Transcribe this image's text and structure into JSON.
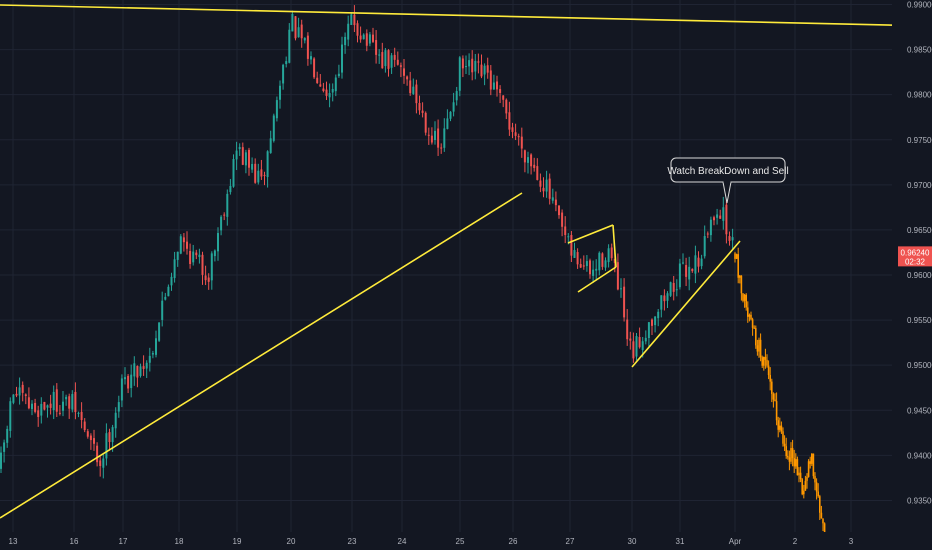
{
  "colors": {
    "background": "#131722",
    "grid": "#1f2433",
    "axis_text": "#b2b5be",
    "up": "#26a69a",
    "down": "#ef5350",
    "projection": "#ff9800",
    "trendline": "#ffeb3b",
    "price_tag": "#ef5350",
    "callout_bg": "#131722",
    "callout_border": "#d9d9d9",
    "callout_text": "#e8e8e8"
  },
  "chart_data": {
    "type": "candlestick",
    "title": "",
    "xlabel": "",
    "ylabel": "",
    "ylim": [
      0.9315,
      0.9905
    ],
    "x_ticks": [
      "13",
      "16",
      "17",
      "18",
      "19",
      "20",
      "23",
      "24",
      "25",
      "26",
      "27",
      "30",
      "31",
      "Apr",
      "2",
      "3"
    ],
    "y_ticks": [
      "0.99000",
      "0.98500",
      "0.98000",
      "0.97500",
      "0.97000",
      "0.96500",
      "0.96000",
      "0.95500",
      "0.95000",
      "0.94500",
      "0.94000",
      "0.93500"
    ],
    "grid": true,
    "last_price": "0.96240",
    "countdown": "02:32",
    "anchors": [
      {
        "x": "12",
        "y": 0.9385
      },
      {
        "x": "13",
        "y": 0.947
      },
      {
        "x": "14",
        "y": 0.945
      },
      {
        "x": "15",
        "y": 0.946
      },
      {
        "x": "16",
        "y": 0.9455
      },
      {
        "x": "16.5",
        "y": 0.939
      },
      {
        "x": "17",
        "y": 0.948
      },
      {
        "x": "17.5",
        "y": 0.951
      },
      {
        "x": "18",
        "y": 0.964
      },
      {
        "x": "18.5",
        "y": 0.96
      },
      {
        "x": "19",
        "y": 0.974
      },
      {
        "x": "19.5",
        "y": 0.97
      },
      {
        "x": "20",
        "y": 0.988
      },
      {
        "x": "21",
        "y": 0.984
      },
      {
        "x": "22",
        "y": 0.98
      },
      {
        "x": "23",
        "y": 0.9885
      },
      {
        "x": "23.5",
        "y": 0.984
      },
      {
        "x": "24",
        "y": 0.983
      },
      {
        "x": "24.6",
        "y": 0.9735
      },
      {
        "x": "25",
        "y": 0.983
      },
      {
        "x": "25.5",
        "y": 0.982
      },
      {
        "x": "26",
        "y": 0.976
      },
      {
        "x": "26.5",
        "y": 0.97
      },
      {
        "x": "27",
        "y": 0.9625
      },
      {
        "x": "27.4",
        "y": 0.96
      },
      {
        "x": "27.7",
        "y": 0.963
      },
      {
        "x": "28",
        "y": 0.958
      },
      {
        "x": "29",
        "y": 0.952
      },
      {
        "x": "30",
        "y": 0.951
      },
      {
        "x": "30.5",
        "y": 0.956
      },
      {
        "x": "31",
        "y": 0.96
      },
      {
        "x": "31.5",
        "y": 0.962
      },
      {
        "x": "31.8",
        "y": 0.968
      },
      {
        "x": "Apr 1",
        "y": 0.9624
      }
    ],
    "projection": [
      {
        "x": "Apr 1",
        "y": 0.9624
      },
      {
        "x": "Apr 1.2",
        "y": 0.958
      },
      {
        "x": "Apr 1.4",
        "y": 0.954
      },
      {
        "x": "Apr 1.6",
        "y": 0.95
      },
      {
        "x": "Apr 1.8",
        "y": 0.944
      },
      {
        "x": "Apr 1.9",
        "y": 0.941
      },
      {
        "x": "Apr 2",
        "y": 0.9395
      },
      {
        "x": "Apr 2.1",
        "y": 0.936
      },
      {
        "x": "Apr 2.2",
        "y": 0.94
      },
      {
        "x": "Apr 2.35",
        "y": 0.933
      },
      {
        "x": "Apr 2.5",
        "y": 0.9318
      }
    ],
    "annotations": [
      {
        "type": "callout",
        "text": "Watch BreakDown and Sell"
      }
    ],
    "drawings": [
      "top-resistance-line",
      "long-support-line",
      "bear-flag-upper",
      "bear-flag-lower",
      "rising-support-line",
      "break-arrow"
    ]
  }
}
